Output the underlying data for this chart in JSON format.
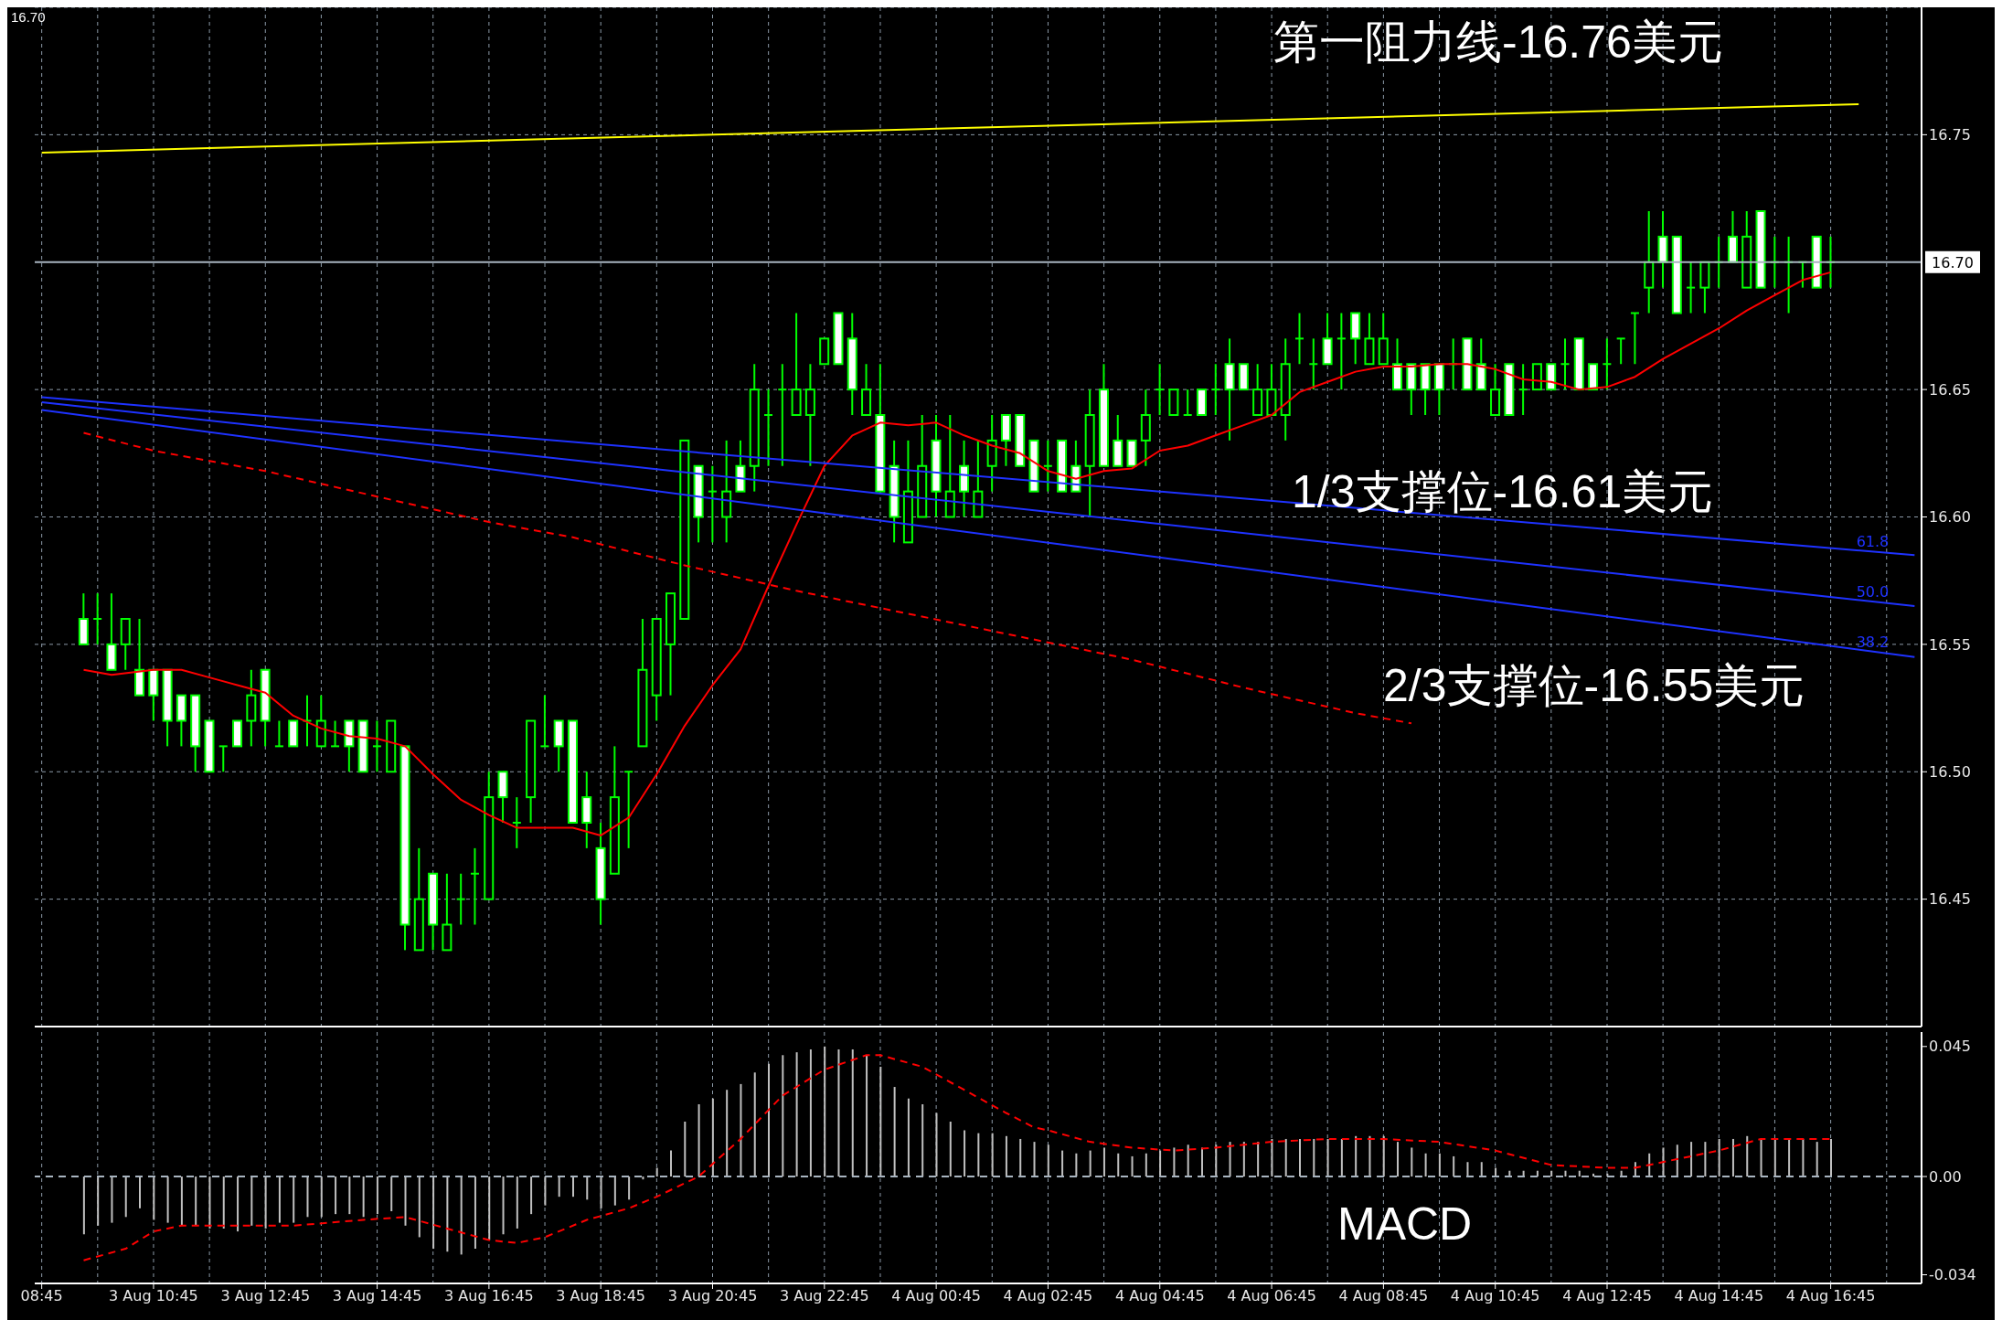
{
  "chart_data": [
    {
      "type": "candlestick",
      "color": "#00ff00",
      "categories": [
        null,
        null,
        null,
        null,
        null,
        null,
        null,
        null,
        null,
        null,
        null,
        null,
        null,
        null,
        null,
        null,
        null,
        null,
        null,
        null,
        null,
        null,
        null,
        null,
        null,
        null,
        null,
        null,
        null,
        null,
        null,
        null,
        null,
        null,
        null,
        null,
        null,
        null,
        null,
        null,
        null,
        null,
        null,
        null,
        null,
        null,
        null,
        null,
        null,
        null,
        null,
        null,
        null,
        null,
        null,
        null,
        null,
        null,
        null,
        null,
        null,
        null,
        null,
        null,
        null,
        null,
        null,
        null,
        null,
        null,
        null,
        null,
        null,
        null,
        null,
        null,
        null,
        null,
        null,
        null,
        null,
        null,
        null,
        null,
        null,
        null,
        null,
        null,
        null,
        null,
        null,
        null,
        null,
        null,
        null,
        null,
        null,
        null,
        null,
        null,
        null,
        null,
        null,
        null,
        null,
        null,
        null,
        null,
        null,
        null,
        null,
        null,
        null,
        null,
        null,
        null,
        null,
        null,
        null,
        null,
        null,
        null,
        null,
        null,
        null,
        null,
        null,
        null,
        null,
        null,
        null,
        null,
        null,
        null,
        null
      ],
      "ohlc": [
        null,
        null,
        null,
        [
          16.56,
          16.57,
          16.55,
          16.55
        ],
        [
          16.56,
          16.57,
          16.55,
          16.56
        ],
        [
          16.55,
          16.57,
          16.54,
          16.54
        ],
        [
          16.55,
          16.56,
          16.54,
          16.56
        ],
        [
          16.54,
          16.56,
          16.53,
          16.53
        ],
        [
          16.54,
          16.54,
          16.52,
          16.53
        ],
        [
          16.54,
          16.54,
          16.51,
          16.52
        ],
        [
          16.53,
          16.53,
          16.51,
          16.52
        ],
        [
          16.53,
          16.53,
          16.5,
          16.51
        ],
        [
          16.52,
          16.52,
          16.5,
          16.5
        ],
        [
          16.51,
          16.51,
          16.5,
          16.51
        ],
        [
          16.52,
          16.52,
          16.51,
          16.51
        ],
        [
          16.52,
          16.54,
          16.51,
          16.53
        ],
        [
          16.54,
          16.54,
          16.51,
          16.52
        ],
        [
          16.51,
          16.52,
          16.51,
          16.51
        ],
        [
          16.52,
          16.52,
          16.51,
          16.51
        ],
        [
          16.52,
          16.53,
          16.51,
          16.52
        ],
        [
          16.51,
          16.53,
          16.51,
          16.52
        ],
        [
          16.51,
          16.52,
          16.51,
          16.51
        ],
        [
          16.52,
          16.52,
          16.5,
          16.51
        ],
        [
          16.52,
          16.52,
          16.5,
          16.5
        ],
        [
          16.51,
          16.52,
          16.5,
          16.51
        ],
        [
          16.5,
          16.52,
          16.5,
          16.52
        ],
        [
          16.51,
          16.51,
          16.43,
          16.44
        ],
        [
          16.43,
          16.47,
          16.43,
          16.45
        ],
        [
          16.46,
          16.46,
          16.43,
          16.44
        ],
        [
          16.43,
          16.46,
          16.43,
          16.44
        ],
        [
          16.45,
          16.46,
          16.44,
          16.45
        ],
        [
          16.46,
          16.47,
          16.44,
          16.46
        ],
        [
          16.45,
          16.5,
          16.45,
          16.49
        ],
        [
          16.5,
          16.5,
          16.48,
          16.49
        ],
        [
          16.48,
          16.49,
          16.47,
          16.48
        ],
        [
          16.49,
          16.52,
          16.48,
          16.52
        ],
        [
          16.51,
          16.53,
          16.51,
          16.51
        ],
        [
          16.52,
          16.52,
          16.5,
          16.51
        ],
        [
          16.52,
          16.52,
          16.48,
          16.48
        ],
        [
          16.49,
          16.5,
          16.47,
          16.48
        ],
        [
          16.47,
          16.48,
          16.44,
          16.45
        ],
        [
          16.46,
          16.51,
          16.46,
          16.49
        ],
        [
          16.5,
          16.5,
          16.47,
          16.5
        ],
        [
          16.51,
          16.56,
          16.51,
          16.54
        ],
        [
          16.53,
          16.56,
          16.52,
          16.56
        ],
        [
          16.55,
          16.57,
          16.53,
          16.57
        ],
        [
          16.56,
          16.63,
          16.56,
          16.63
        ],
        [
          16.62,
          16.62,
          16.59,
          16.6
        ],
        [
          16.61,
          16.62,
          16.59,
          16.61
        ],
        [
          16.6,
          16.63,
          16.59,
          16.61
        ],
        [
          16.62,
          16.63,
          16.61,
          16.61
        ],
        [
          16.62,
          16.66,
          16.61,
          16.65
        ],
        [
          16.64,
          16.65,
          16.62,
          16.64
        ],
        [
          16.65,
          16.66,
          16.62,
          16.65
        ],
        [
          16.64,
          16.68,
          16.64,
          16.65
        ],
        [
          16.64,
          16.66,
          16.62,
          16.65
        ],
        [
          16.66,
          16.67,
          16.66,
          16.67
        ],
        [
          16.68,
          16.68,
          16.66,
          16.66
        ],
        [
          16.67,
          16.68,
          16.64,
          16.65
        ],
        [
          16.64,
          16.66,
          16.64,
          16.65
        ],
        [
          16.64,
          16.66,
          16.61,
          16.61
        ],
        [
          16.62,
          16.63,
          16.59,
          16.6
        ],
        [
          16.59,
          16.63,
          16.59,
          16.61
        ],
        [
          16.6,
          16.64,
          16.6,
          16.62
        ],
        [
          16.63,
          16.64,
          16.6,
          16.61
        ],
        [
          16.6,
          16.64,
          16.6,
          16.61
        ],
        [
          16.62,
          16.63,
          16.6,
          16.61
        ],
        [
          16.6,
          16.63,
          16.6,
          16.61
        ],
        [
          16.62,
          16.64,
          16.61,
          16.63
        ],
        [
          16.64,
          16.64,
          16.62,
          16.63
        ],
        [
          16.64,
          16.64,
          16.62,
          16.62
        ],
        [
          16.63,
          16.63,
          16.61,
          16.61
        ],
        [
          16.62,
          16.63,
          16.61,
          16.62
        ],
        [
          16.63,
          16.63,
          16.61,
          16.61
        ],
        [
          16.62,
          16.63,
          16.61,
          16.61
        ],
        [
          16.62,
          16.65,
          16.6,
          16.64
        ],
        [
          16.65,
          16.66,
          16.62,
          16.62
        ],
        [
          16.63,
          16.64,
          16.62,
          16.62
        ],
        [
          16.63,
          16.63,
          16.62,
          16.62
        ],
        [
          16.63,
          16.65,
          16.62,
          16.64
        ],
        [
          16.65,
          16.66,
          16.64,
          16.65
        ],
        [
          16.64,
          16.65,
          16.64,
          16.65
        ],
        [
          16.64,
          16.65,
          16.64,
          16.64
        ],
        [
          16.65,
          16.65,
          16.64,
          16.64
        ],
        [
          16.65,
          16.66,
          16.64,
          16.65
        ],
        [
          16.66,
          16.67,
          16.63,
          16.65
        ],
        [
          16.66,
          16.66,
          16.65,
          16.65
        ],
        [
          16.64,
          16.66,
          16.64,
          16.65
        ],
        [
          16.64,
          16.66,
          16.64,
          16.65
        ],
        [
          16.64,
          16.67,
          16.63,
          16.66
        ],
        [
          16.67,
          16.68,
          16.66,
          16.67
        ],
        [
          16.66,
          16.67,
          16.65,
          16.66
        ],
        [
          16.67,
          16.68,
          16.66,
          16.66
        ],
        [
          16.67,
          16.68,
          16.65,
          16.67
        ],
        [
          16.68,
          16.68,
          16.66,
          16.67
        ],
        [
          16.66,
          16.68,
          16.66,
          16.67
        ],
        [
          16.66,
          16.68,
          16.66,
          16.67
        ],
        [
          16.66,
          16.67,
          16.65,
          16.65
        ],
        [
          16.66,
          16.66,
          16.64,
          16.65
        ],
        [
          16.66,
          16.66,
          16.64,
          16.65
        ],
        [
          16.66,
          16.66,
          16.64,
          16.65
        ],
        [
          16.66,
          16.67,
          16.65,
          16.66
        ],
        [
          16.67,
          16.67,
          16.65,
          16.65
        ],
        [
          16.66,
          16.67,
          16.65,
          16.65
        ],
        [
          16.64,
          16.66,
          16.64,
          16.65
        ],
        [
          16.66,
          16.66,
          16.64,
          16.64
        ],
        [
          16.65,
          16.66,
          16.64,
          16.65
        ],
        [
          16.65,
          16.66,
          16.65,
          16.66
        ],
        [
          16.66,
          16.66,
          16.65,
          16.65
        ],
        [
          16.66,
          16.67,
          16.65,
          16.66
        ],
        [
          16.67,
          16.67,
          16.65,
          16.65
        ],
        [
          16.66,
          16.66,
          16.65,
          16.65
        ],
        [
          16.66,
          16.67,
          16.65,
          16.66
        ],
        [
          16.67,
          16.67,
          16.66,
          16.67
        ],
        [
          16.68,
          16.68,
          16.66,
          16.68
        ],
        [
          16.69,
          16.72,
          16.68,
          16.7
        ],
        [
          16.71,
          16.72,
          16.69,
          16.7
        ],
        [
          16.71,
          16.71,
          16.68,
          16.68
        ],
        [
          16.69,
          16.7,
          16.68,
          16.69
        ],
        [
          16.69,
          16.7,
          16.68,
          16.7
        ],
        [
          16.7,
          16.71,
          16.69,
          16.7
        ],
        [
          16.71,
          16.72,
          16.7,
          16.7
        ],
        [
          16.69,
          16.72,
          16.69,
          16.71
        ],
        [
          16.72,
          16.72,
          16.69,
          16.69
        ],
        [
          16.7,
          16.71,
          16.69,
          16.7
        ],
        [
          16.7,
          16.71,
          16.68,
          16.7
        ],
        [
          16.7,
          16.7,
          16.69,
          16.7
        ],
        [
          16.71,
          16.71,
          16.69,
          16.69
        ],
        [
          16.7,
          16.71,
          16.69,
          16.7
        ],
        null,
        null,
        null,
        null,
        null,
        null
      ],
      "series": [
        {
          "type": "line",
          "color": "#ff0000",
          "values": [
            null,
            null,
            null,
            16.54,
            null,
            16.538,
            null,
            null,
            16.54,
            null,
            16.54,
            null,
            16.537,
            null,
            16.534,
            null,
            16.531,
            null,
            16.522,
            null,
            16.517,
            null,
            16.514,
            null,
            16.513,
            null,
            16.51,
            null,
            16.499,
            null,
            16.489,
            null,
            16.483,
            null,
            16.478,
            null,
            16.478,
            null,
            16.478,
            null,
            16.475,
            null,
            16.482,
            null,
            16.499,
            null,
            16.518,
            null,
            16.534,
            null,
            16.548,
            null,
            16.573,
            null,
            16.597,
            null,
            16.62,
            null,
            16.632,
            null,
            16.637,
            null,
            16.636,
            null,
            16.637,
            null,
            16.632,
            null,
            16.628,
            null,
            16.625,
            null,
            16.618,
            null,
            16.615,
            null,
            16.618,
            null,
            16.619,
            null,
            16.626,
            null,
            16.628,
            null,
            16.632,
            null,
            16.636,
            null,
            16.64,
            null,
            16.649,
            null,
            16.653,
            null,
            16.657,
            null,
            16.659,
            null,
            16.659,
            null,
            16.66,
            null,
            16.66,
            null,
            16.658,
            null,
            16.654,
            null,
            16.653,
            null,
            16.65,
            null,
            16.651,
            null,
            16.655,
            null,
            16.662,
            null,
            16.668,
            null,
            16.674,
            null,
            16.681,
            null,
            16.687,
            null,
            16.693,
            null,
            16.696,
            null,
            null,
            null,
            null,
            null,
            null
          ]
        },
        {
          "type": "line",
          "color": "#ff0000",
          "line_style": "dashed",
          "values": [
            null,
            null,
            null,
            16.633,
            null,
            null,
            null,
            null,
            16.626,
            null,
            null,
            null,
            null,
            null,
            null,
            null,
            16.618,
            null,
            null,
            null,
            null,
            null,
            null,
            null,
            16.608,
            null,
            null,
            null,
            null,
            null,
            null,
            null,
            16.598,
            null,
            null,
            null,
            null,
            null,
            16.592,
            null,
            null,
            null,
            null,
            null,
            null,
            null,
            16.581,
            null,
            null,
            null,
            null,
            null,
            null,
            null,
            16.571,
            null,
            null,
            null,
            null,
            null,
            null,
            null,
            16.562,
            null,
            null,
            null,
            null,
            null,
            null,
            null,
            16.553,
            null,
            null,
            null,
            null,
            null,
            null,
            null,
            16.544,
            null,
            null,
            null,
            null,
            null,
            null,
            null,
            16.533,
            null,
            null,
            null,
            null,
            null,
            null,
            null,
            16.523,
            null,
            null,
            null,
            16.519,
            null,
            null,
            null,
            null,
            null,
            null,
            null,
            null,
            null,
            null,
            null,
            null,
            null,
            null,
            null,
            null,
            null,
            null,
            null,
            null,
            null,
            null,
            null,
            null,
            null,
            null,
            null,
            null,
            null,
            null,
            null,
            null,
            null,
            null,
            null,
            null
          ]
        },
        {
          "type": "line",
          "color": "#ffff00",
          "values": [
            16.743,
            null,
            null,
            null,
            null,
            null,
            null,
            null,
            null,
            null,
            null,
            null,
            null,
            null,
            null,
            null,
            null,
            null,
            null,
            null,
            null,
            null,
            null,
            null,
            null,
            null,
            null,
            null,
            null,
            null,
            null,
            null,
            null,
            null,
            null,
            null,
            null,
            null,
            null,
            null,
            null,
            null,
            null,
            null,
            null,
            null,
            null,
            null,
            null,
            null,
            null,
            null,
            null,
            null,
            null,
            null,
            null,
            null,
            null,
            null,
            null,
            null,
            null,
            null,
            null,
            null,
            null,
            null,
            null,
            null,
            null,
            null,
            null,
            null,
            null,
            null,
            null,
            null,
            null,
            null,
            null,
            null,
            null,
            null,
            null,
            null,
            null,
            null,
            null,
            null,
            null,
            null,
            null,
            null,
            null,
            null,
            null,
            null,
            null,
            null,
            null,
            null,
            null,
            null,
            null,
            null,
            null,
            null,
            null,
            null,
            null,
            null,
            null,
            null,
            null,
            null,
            null,
            null,
            null,
            null,
            null,
            null,
            null,
            null,
            null,
            null,
            null,
            null,
            null,
            null,
            16.762,
            null,
            null,
            null,
            null
          ]
        },
        {
          "type": "line",
          "name": "61.8",
          "color": "#1e32ff",
          "values": [
            16.647,
            null,
            null,
            null,
            null,
            null,
            null,
            null,
            null,
            null,
            null,
            null,
            null,
            null,
            null,
            null,
            null,
            null,
            null,
            null,
            null,
            null,
            null,
            null,
            null,
            null,
            null,
            null,
            null,
            null,
            null,
            null,
            null,
            null,
            null,
            null,
            null,
            null,
            null,
            null,
            null,
            null,
            null,
            null,
            null,
            null,
            null,
            null,
            null,
            null,
            null,
            null,
            null,
            null,
            null,
            null,
            null,
            null,
            null,
            null,
            null,
            null,
            null,
            null,
            null,
            null,
            null,
            null,
            null,
            null,
            null,
            null,
            null,
            null,
            null,
            null,
            null,
            null,
            null,
            null,
            null,
            null,
            null,
            null,
            null,
            null,
            null,
            null,
            null,
            null,
            null,
            null,
            null,
            null,
            null,
            null,
            null,
            null,
            null,
            null,
            null,
            null,
            null,
            null,
            null,
            null,
            null,
            null,
            null,
            null,
            null,
            null,
            null,
            null,
            null,
            null,
            null,
            null,
            null,
            null,
            null,
            null,
            null,
            null,
            null,
            null,
            null,
            null,
            null,
            null,
            null,
            null,
            null,
            null,
            16.585
          ]
        },
        {
          "type": "line",
          "name": "50.0",
          "color": "#1e32ff",
          "values": [
            16.645,
            null,
            null,
            null,
            null,
            null,
            null,
            null,
            null,
            null,
            null,
            null,
            null,
            null,
            null,
            null,
            null,
            null,
            null,
            null,
            null,
            null,
            null,
            null,
            null,
            null,
            null,
            null,
            null,
            null,
            null,
            null,
            null,
            null,
            null,
            null,
            null,
            null,
            null,
            null,
            null,
            null,
            null,
            null,
            null,
            null,
            null,
            null,
            null,
            null,
            null,
            null,
            null,
            null,
            null,
            null,
            null,
            null,
            null,
            null,
            null,
            null,
            null,
            null,
            null,
            null,
            null,
            null,
            null,
            null,
            null,
            null,
            null,
            null,
            null,
            null,
            null,
            null,
            null,
            null,
            null,
            null,
            null,
            null,
            null,
            null,
            null,
            null,
            null,
            null,
            null,
            null,
            null,
            null,
            null,
            null,
            null,
            null,
            null,
            null,
            null,
            null,
            null,
            null,
            null,
            null,
            null,
            null,
            null,
            null,
            null,
            null,
            null,
            null,
            null,
            null,
            null,
            null,
            null,
            null,
            null,
            null,
            null,
            null,
            null,
            null,
            null,
            null,
            null,
            null,
            null,
            null,
            null,
            null,
            16.565
          ]
        },
        {
          "type": "line",
          "name": "38.2",
          "color": "#1e32ff",
          "values": [
            16.642,
            null,
            null,
            null,
            null,
            null,
            null,
            null,
            null,
            null,
            null,
            null,
            null,
            null,
            null,
            null,
            null,
            null,
            null,
            null,
            null,
            null,
            null,
            null,
            null,
            null,
            null,
            null,
            null,
            null,
            null,
            null,
            null,
            null,
            null,
            null,
            null,
            null,
            null,
            null,
            null,
            null,
            null,
            null,
            null,
            null,
            null,
            null,
            null,
            null,
            null,
            null,
            null,
            null,
            null,
            null,
            null,
            null,
            null,
            null,
            null,
            null,
            null,
            null,
            null,
            null,
            null,
            null,
            null,
            null,
            null,
            null,
            null,
            null,
            null,
            null,
            null,
            null,
            null,
            null,
            null,
            null,
            null,
            null,
            null,
            null,
            null,
            null,
            null,
            null,
            null,
            null,
            null,
            null,
            null,
            null,
            null,
            null,
            null,
            null,
            null,
            null,
            null,
            null,
            null,
            null,
            null,
            null,
            null,
            null,
            null,
            null,
            null,
            null,
            null,
            null,
            null,
            null,
            null,
            null,
            null,
            null,
            null,
            null,
            null,
            null,
            null,
            null,
            null,
            null,
            null,
            null,
            null,
            null,
            16.545
          ]
        }
      ],
      "ylim": [
        16.4,
        16.8
      ],
      "yticks": [
        16.75,
        16.65,
        {
          "value": 16.6,
          "label": "16.60"
        },
        16.55,
        {
          "value": 16.5,
          "label": "16.50"
        },
        16.45
      ],
      "ref_lines": [
        {
          "axis": "y",
          "value": 16.7,
          "label": "16.70",
          "color": "#a8b4c0"
        }
      ],
      "annotations": [
        "16.70",
        "第一阻力线-16.76美元",
        "1/3支撑位-16.61美元",
        "2/3支撑位-16.55美元"
      ],
      "grid": true,
      "tick_labels": "y"
    },
    {
      "type": "bar",
      "categories": [
        "08:45",
        null,
        null,
        null,
        null,
        null,
        null,
        null,
        "3 Aug 10:45",
        null,
        null,
        null,
        null,
        null,
        null,
        null,
        "3 Aug 12:45",
        null,
        null,
        null,
        null,
        null,
        null,
        null,
        "3 Aug 14:45",
        null,
        null,
        null,
        null,
        null,
        null,
        null,
        "3 Aug 16:45",
        null,
        null,
        null,
        null,
        null,
        null,
        null,
        "3 Aug 18:45",
        null,
        null,
        null,
        null,
        null,
        null,
        null,
        "3 Aug 20:45",
        null,
        null,
        null,
        null,
        null,
        null,
        null,
        "3 Aug 22:45",
        null,
        null,
        null,
        null,
        null,
        null,
        null,
        "4 Aug 00:45",
        null,
        null,
        null,
        null,
        null,
        null,
        null,
        "4 Aug 02:45",
        null,
        null,
        null,
        null,
        null,
        null,
        null,
        "4 Aug 04:45",
        null,
        null,
        null,
        null,
        null,
        null,
        null,
        "4 Aug 06:45",
        null,
        null,
        null,
        null,
        null,
        null,
        null,
        "4 Aug 08:45",
        null,
        null,
        null,
        null,
        null,
        null,
        null,
        "4 Aug 10:45",
        null,
        null,
        null,
        null,
        null,
        null,
        null,
        "4 Aug 12:45",
        null,
        null,
        null,
        null,
        null,
        null,
        null,
        "4 Aug 14:45",
        null,
        null,
        null,
        null,
        null,
        null,
        null,
        "4 Aug 16:45",
        null,
        null,
        null,
        null,
        null,
        null
      ],
      "series": [
        {
          "color": "#c0c0c0",
          "values": [
            null,
            null,
            null,
            -0.02,
            -0.017,
            -0.016,
            -0.014,
            -0.011,
            -0.015,
            -0.016,
            -0.017,
            -0.017,
            -0.018,
            -0.018,
            -0.019,
            -0.017,
            -0.018,
            -0.016,
            -0.016,
            -0.014,
            -0.014,
            -0.013,
            -0.013,
            -0.014,
            -0.013,
            -0.012,
            -0.017,
            -0.021,
            -0.025,
            -0.026,
            -0.027,
            -0.025,
            -0.022,
            -0.02,
            -0.018,
            -0.013,
            -0.01,
            -0.007,
            -0.007,
            -0.008,
            -0.011,
            -0.01,
            -0.008,
            -0.001,
            0.003,
            0.009,
            0.019,
            0.025,
            0.027,
            0.03,
            0.032,
            0.036,
            0.039,
            0.042,
            0.043,
            0.044,
            0.045,
            0.044,
            0.044,
            0.042,
            0.038,
            0.031,
            0.027,
            0.025,
            0.022,
            0.019,
            0.016,
            0.015,
            0.015,
            0.014,
            0.013,
            0.012,
            0.011,
            0.009,
            0.008,
            0.009,
            0.01,
            0.008,
            0.007,
            0.008,
            0.009,
            0.01,
            0.011,
            0.01,
            0.011,
            0.012,
            0.012,
            0.012,
            0.013,
            0.013,
            0.013,
            0.013,
            0.013,
            0.013,
            0.014,
            0.014,
            0.014,
            0.012,
            0.01,
            0.008,
            0.008,
            0.007,
            0.005,
            0.005,
            0.003,
            0.002,
            0.002,
            0.002,
            0.002,
            0.002,
            0.002,
            0.001,
            0.001,
            0.002,
            0.005,
            0.008,
            0.01,
            0.011,
            0.012,
            0.012,
            0.013,
            0.013,
            0.014,
            0.013,
            0.013,
            0.013,
            0.013,
            0.012,
            0.013,
            null,
            null,
            null,
            null,
            null,
            null
          ]
        },
        {
          "type": "line",
          "color": "#ff0000",
          "line_style": "dashed",
          "values": [
            null,
            null,
            null,
            -0.029,
            null,
            null,
            -0.025,
            null,
            -0.019,
            null,
            -0.017,
            null,
            null,
            -0.017,
            null,
            null,
            null,
            null,
            -0.017,
            null,
            null,
            null,
            null,
            -0.015,
            null,
            null,
            -0.014,
            null,
            null,
            -0.018,
            null,
            null,
            -0.022,
            null,
            -0.023,
            null,
            -0.021,
            null,
            null,
            -0.015,
            null,
            null,
            -0.011,
            null,
            -0.007,
            null,
            null,
            0,
            null,
            null,
            0.013,
            null,
            null,
            0.028,
            null,
            null,
            0.037,
            null,
            null,
            0.042,
            0.042,
            null,
            null,
            0.038,
            null,
            null,
            0.03,
            null,
            null,
            0.022,
            null,
            0.017,
            0.016,
            null,
            null,
            0.012,
            null,
            null,
            0.01,
            null,
            null,
            0.009,
            null,
            null,
            0.01,
            null,
            null,
            null,
            0.012,
            null,
            null,
            null,
            0.013,
            null,
            null,
            null,
            0.013,
            null,
            null,
            null,
            0.012,
            null,
            null,
            null,
            0.009,
            null,
            null,
            null,
            0.004,
            null,
            null,
            null,
            0.003,
            null,
            0.003,
            null,
            null,
            0.006,
            null,
            null,
            0.009,
            null,
            null,
            0.013,
            null,
            0.013,
            null,
            null,
            0.013,
            null,
            null,
            null,
            null,
            null,
            null
          ]
        }
      ],
      "ylim": [
        -0.037,
        0.05
      ],
      "yticks": [
        0.045,
        {
          "value": 0,
          "label": "0.00"
        },
        -0.034
      ],
      "ref_lines": [
        {
          "axis": "y",
          "value": 0,
          "color": "#a8b4c0",
          "line_style": "dashed"
        }
      ],
      "annotations": [
        "MACD"
      ],
      "grid": "x"
    }
  ]
}
